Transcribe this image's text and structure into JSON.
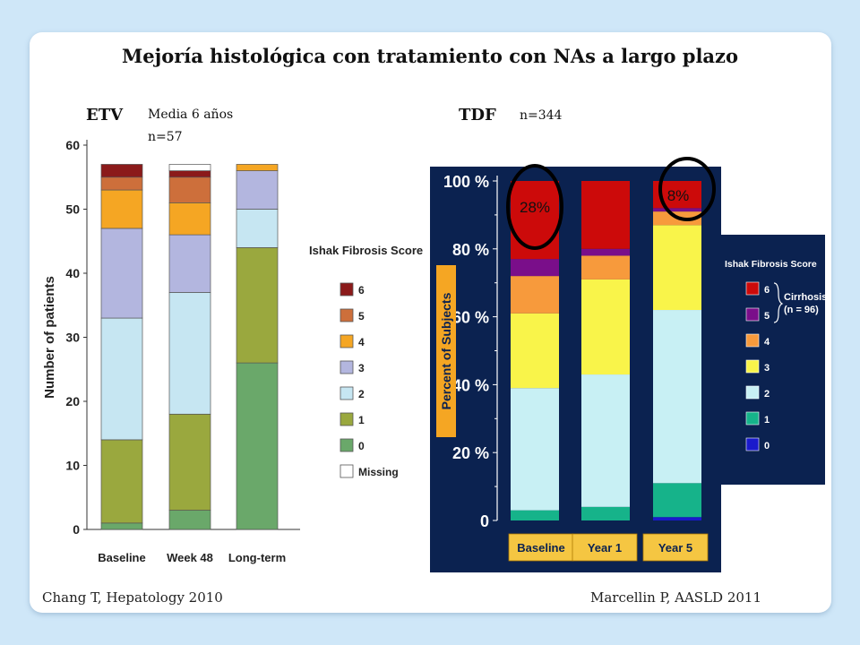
{
  "slide": {
    "title": "Mejoría histológica con tratamiento con NAs a largo plazo",
    "left_label": "ETV",
    "left_note_1": "Media 6 años",
    "left_note_2": "n=57",
    "right_label": "TDF",
    "right_note": "n=344",
    "citation_left": "Chang T, Hepatology 2010",
    "citation_right": "Marcellin P, AASLD 2011"
  },
  "chart_data": [
    {
      "type": "bar",
      "stacked": true,
      "ylabel": "Number of patients",
      "ylim": [
        0,
        60
      ],
      "yticks": [
        "0",
        "10",
        "20",
        "30",
        "40",
        "50",
        "60"
      ],
      "categories": [
        "Baseline",
        "Week 48",
        "Long-term"
      ],
      "legend_title": "Ishak Fibrosis Score",
      "series": [
        {
          "name": "0",
          "color": "#6aa86a",
          "values": [
            1,
            3,
            26
          ]
        },
        {
          "name": "1",
          "color": "#9aa83e",
          "values": [
            13,
            15,
            18
          ]
        },
        {
          "name": "2",
          "color": "#c6e6f2",
          "values": [
            19,
            19,
            6
          ]
        },
        {
          "name": "3",
          "color": "#b3b6df",
          "values": [
            14,
            9,
            6
          ]
        },
        {
          "name": "4",
          "color": "#f5a623",
          "values": [
            6,
            5,
            1
          ]
        },
        {
          "name": "5",
          "color": "#cd6f3b",
          "values": [
            2,
            4,
            0
          ]
        },
        {
          "name": "6",
          "color": "#8b1a1a",
          "values": [
            2,
            1,
            0
          ]
        },
        {
          "name": "Missing",
          "color": "#ffffff",
          "values": [
            0,
            1,
            0
          ]
        }
      ]
    },
    {
      "type": "bar",
      "stacked": true,
      "ylabel": "Percent of Subjects",
      "ylim": [
        0,
        100
      ],
      "yticks": [
        "0",
        "20 %",
        "40 %",
        "60 %",
        "80 %",
        "100 %"
      ],
      "categories": [
        "Baseline",
        "Year 1",
        "Year 5"
      ],
      "legend_title": "Ishak Fibrosis Score",
      "legend_note": "Cirrhosis\n(n = 96)",
      "annotations": [
        "28%",
        "8%"
      ],
      "series": [
        {
          "name": "0",
          "color": "#1a1acc",
          "values": [
            0,
            0,
            1
          ]
        },
        {
          "name": "1",
          "color": "#16b38a",
          "values": [
            3,
            4,
            10
          ]
        },
        {
          "name": "2",
          "color": "#c8f0f4",
          "values": [
            36,
            39,
            51
          ]
        },
        {
          "name": "3",
          "color": "#f9f44a",
          "values": [
            22,
            28,
            25
          ]
        },
        {
          "name": "4",
          "color": "#f79a3c",
          "values": [
            11,
            7,
            4
          ]
        },
        {
          "name": "5",
          "color": "#7a0e8a",
          "values": [
            5,
            2,
            1
          ]
        },
        {
          "name": "6",
          "color": "#cc0a0a",
          "values": [
            23,
            20,
            8
          ]
        }
      ]
    }
  ]
}
